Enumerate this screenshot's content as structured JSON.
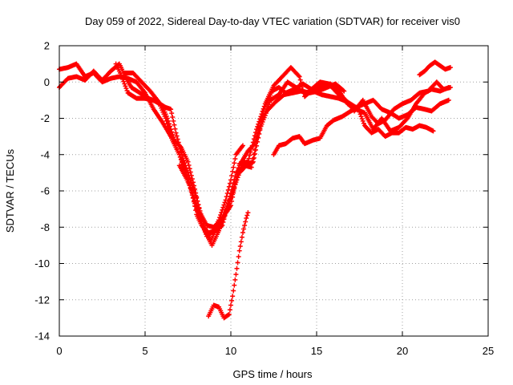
{
  "chart_data": {
    "type": "scatter",
    "title": "Day 059 of 2022, Sidereal Day-to-day VTEC variation (SDTVAR) for receiver vis0",
    "xlabel": "GPS time / hours",
    "ylabel": "SDTVAR / TECUs",
    "xlim": [
      0,
      25
    ],
    "ylim": [
      -14,
      2
    ],
    "x_ticks": [
      "0",
      "5",
      "10",
      "15",
      "20",
      "25"
    ],
    "y_ticks": [
      "2",
      "0",
      "-2",
      "-4",
      "-6",
      "-8",
      "-10",
      "-12",
      "-14"
    ],
    "grid": true,
    "legend": "none",
    "marker": "plus",
    "color": "#ff0000",
    "series": [
      {
        "points": [
          [
            0.0,
            0.7
          ],
          [
            0.5,
            0.8
          ],
          [
            1.0,
            1.0
          ],
          [
            1.5,
            0.3
          ],
          [
            2.0,
            0.5
          ],
          [
            2.5,
            0.0
          ],
          [
            3.0,
            0.2
          ],
          [
            3.5,
            0.3
          ],
          [
            4.0,
            0.2
          ],
          [
            4.5,
            0.0
          ],
          [
            5.0,
            -0.6
          ],
          [
            5.5,
            -1.5
          ],
          [
            6.0,
            -2.2
          ],
          [
            6.5,
            -3.0
          ],
          [
            7.0,
            -4.0
          ],
          [
            7.5,
            -5.4
          ],
          [
            8.0,
            -6.8
          ],
          [
            8.3,
            -7.8
          ],
          [
            8.6,
            -8.5
          ],
          [
            9.0,
            -8.2
          ],
          [
            9.3,
            -7.6
          ],
          [
            9.7,
            -6.5
          ],
          [
            10.0,
            -5.4
          ],
          [
            10.3,
            -4.0
          ],
          [
            10.7,
            -3.5
          ]
        ]
      },
      {
        "points": [
          [
            0.0,
            -0.3
          ],
          [
            0.5,
            0.2
          ],
          [
            1.0,
            0.3
          ],
          [
            1.5,
            0.1
          ],
          [
            2.0,
            0.6
          ],
          [
            2.5,
            0.1
          ],
          [
            3.0,
            0.6
          ],
          [
            3.5,
            1.0
          ],
          [
            3.8,
            0.4
          ],
          [
            4.2,
            -0.3
          ],
          [
            4.7,
            -0.6
          ],
          [
            5.2,
            -0.9
          ],
          [
            5.7,
            -1.1
          ],
          [
            6.2,
            -1.4
          ],
          [
            6.5,
            -1.5
          ],
          [
            6.8,
            -2.8
          ],
          [
            7.2,
            -4.2
          ],
          [
            7.5,
            -5.0
          ],
          [
            8.0,
            -6.4
          ],
          [
            8.4,
            -7.8
          ],
          [
            8.8,
            -8.8
          ],
          [
            9.2,
            -8.0
          ],
          [
            9.6,
            -7.4
          ],
          [
            10.0,
            -6.3
          ],
          [
            10.5,
            -5.0
          ],
          [
            11.0,
            -4.5
          ],
          [
            11.3,
            -4.4
          ],
          [
            11.8,
            -2.2
          ],
          [
            12.3,
            -1.0
          ],
          [
            12.8,
            -0.7
          ],
          [
            13.3,
            0.0
          ],
          [
            13.8,
            -0.3
          ],
          [
            14.3,
            -0.6
          ],
          [
            14.8,
            -0.5
          ],
          [
            15.3,
            -0.7
          ],
          [
            15.8,
            -0.8
          ],
          [
            16.3,
            -0.9
          ],
          [
            16.8,
            -1.1
          ],
          [
            17.3,
            -1.4
          ],
          [
            17.8,
            -1.2
          ],
          [
            18.3,
            -1.0
          ],
          [
            18.8,
            -1.5
          ],
          [
            19.3,
            -1.7
          ],
          [
            19.8,
            -2.0
          ],
          [
            20.3,
            -1.8
          ],
          [
            20.8,
            -1.4
          ],
          [
            21.3,
            -1.5
          ],
          [
            21.7,
            -1.6
          ],
          [
            22.2,
            -1.2
          ],
          [
            22.7,
            -1.0
          ]
        ]
      },
      {
        "points": [
          [
            3.8,
            0.5
          ],
          [
            4.3,
            0.5
          ],
          [
            4.7,
            0.1
          ],
          [
            5.3,
            -0.5
          ],
          [
            5.8,
            -1.1
          ],
          [
            6.2,
            -2.0
          ],
          [
            6.6,
            -3.2
          ],
          [
            7.0,
            -4.0
          ],
          [
            7.4,
            -5.0
          ],
          [
            7.8,
            -6.4
          ],
          [
            8.2,
            -7.6
          ],
          [
            8.6,
            -8.4
          ],
          [
            8.9,
            -9.0
          ],
          [
            9.3,
            -8.2
          ],
          [
            9.7,
            -7.2
          ],
          [
            10.1,
            -6.2
          ],
          [
            10.5,
            -4.6
          ],
          [
            11.0,
            -3.8
          ],
          [
            11.4,
            -3.4
          ],
          [
            11.9,
            -1.6
          ],
          [
            12.4,
            -0.5
          ],
          [
            12.8,
            -0.3
          ],
          [
            13.2,
            -0.6
          ],
          [
            13.7,
            -0.4
          ],
          [
            14.2,
            -0.1
          ],
          [
            14.7,
            -0.4
          ],
          [
            15.2,
            0.0
          ],
          [
            15.7,
            -0.1
          ],
          [
            16.2,
            -0.6
          ],
          [
            16.7,
            -1.0
          ],
          [
            17.2,
            -1.6
          ],
          [
            17.7,
            -1.0
          ],
          [
            18.2,
            -1.9
          ],
          [
            18.6,
            -2.3
          ],
          [
            19.0,
            -2.1
          ],
          [
            19.5,
            -1.5
          ],
          [
            20.0,
            -1.2
          ],
          [
            20.5,
            -1.0
          ],
          [
            21.0,
            -0.6
          ],
          [
            21.5,
            -0.5
          ],
          [
            22.0,
            0.0
          ],
          [
            22.4,
            -0.4
          ],
          [
            22.8,
            -0.3
          ]
        ]
      },
      {
        "points": [
          [
            3.3,
            1.0
          ],
          [
            3.6,
            0.4
          ],
          [
            4.0,
            -0.6
          ],
          [
            4.5,
            -0.9
          ],
          [
            5.0,
            -0.9
          ],
          [
            5.5,
            -1.0
          ],
          [
            6.0,
            -1.3
          ],
          [
            6.3,
            -2.0
          ],
          [
            6.7,
            -3.2
          ],
          [
            7.1,
            -3.6
          ],
          [
            7.5,
            -4.4
          ],
          [
            7.9,
            -5.9
          ],
          [
            8.2,
            -7.2
          ],
          [
            8.6,
            -7.9
          ],
          [
            9.0,
            -8.0
          ],
          [
            9.4,
            -7.6
          ],
          [
            9.8,
            -7.1
          ],
          [
            10.0,
            -6.8
          ],
          [
            10.5,
            -4.5
          ],
          [
            11.0,
            -4.4
          ],
          [
            11.5,
            -2.6
          ],
          [
            12.0,
            -1.2
          ],
          [
            12.5,
            -0.2
          ],
          [
            13.0,
            0.3
          ],
          [
            13.5,
            0.8
          ],
          [
            14.0,
            0.3
          ],
          [
            14.3,
            -0.8
          ],
          [
            14.8,
            -0.4
          ],
          [
            15.3,
            -0.2
          ],
          [
            15.8,
            -0.1
          ],
          [
            16.3,
            -0.5
          ],
          [
            16.8,
            -1.2
          ],
          [
            17.3,
            -1.5
          ],
          [
            17.8,
            -1.7
          ],
          [
            18.3,
            -2.6
          ],
          [
            18.8,
            -2.0
          ],
          [
            19.3,
            -2.7
          ],
          [
            19.8,
            -2.5
          ],
          [
            20.3,
            -2.0
          ],
          [
            20.8,
            -1.2
          ],
          [
            21.3,
            -0.6
          ],
          [
            21.7,
            -0.4
          ],
          [
            22.2,
            -0.5
          ],
          [
            22.7,
            -0.3
          ]
        ]
      },
      {
        "points": [
          [
            12.5,
            -4.0
          ],
          [
            12.8,
            -3.5
          ],
          [
            13.2,
            -3.4
          ],
          [
            13.6,
            -3.1
          ],
          [
            14.0,
            -3.0
          ],
          [
            14.3,
            -3.4
          ],
          [
            14.8,
            -3.2
          ],
          [
            15.2,
            -3.1
          ],
          [
            15.6,
            -2.4
          ],
          [
            16.0,
            -2.1
          ],
          [
            16.5,
            -1.9
          ],
          [
            17.0,
            -1.6
          ],
          [
            17.4,
            -1.4
          ],
          [
            17.8,
            -2.4
          ],
          [
            18.2,
            -2.8
          ],
          [
            18.6,
            -2.6
          ],
          [
            19.0,
            -3.0
          ],
          [
            19.4,
            -2.8
          ],
          [
            19.8,
            -2.8
          ],
          [
            20.2,
            -2.5
          ],
          [
            20.6,
            -2.6
          ],
          [
            21.0,
            -2.4
          ],
          [
            21.4,
            -2.5
          ],
          [
            21.8,
            -2.7
          ]
        ]
      },
      {
        "points": [
          [
            8.7,
            -12.9
          ],
          [
            9.0,
            -12.3
          ],
          [
            9.3,
            -12.4
          ],
          [
            9.6,
            -13.0
          ],
          [
            9.9,
            -12.8
          ],
          [
            10.1,
            -11.8
          ],
          [
            10.3,
            -10.6
          ],
          [
            10.5,
            -9.3
          ],
          [
            10.7,
            -8.3
          ],
          [
            10.9,
            -7.5
          ],
          [
            11.0,
            -7.2
          ]
        ]
      },
      {
        "points": [
          [
            7.0,
            -4.6
          ],
          [
            7.4,
            -5.3
          ],
          [
            7.7,
            -5.9
          ],
          [
            8.0,
            -7.3
          ],
          [
            8.3,
            -7.9
          ],
          [
            8.7,
            -8.3
          ],
          [
            9.1,
            -8.2
          ],
          [
            9.5,
            -7.9
          ],
          [
            9.9,
            -6.5
          ],
          [
            10.3,
            -5.0
          ],
          [
            10.8,
            -4.6
          ],
          [
            11.2,
            -4.7
          ],
          [
            11.6,
            -2.8
          ],
          [
            12.1,
            -1.6
          ],
          [
            12.6,
            -1.1
          ],
          [
            13.1,
            -0.7
          ],
          [
            13.6,
            -0.6
          ],
          [
            14.1,
            -0.5
          ],
          [
            14.6,
            -0.6
          ],
          [
            15.1,
            -0.5
          ],
          [
            15.6,
            -0.3
          ],
          [
            16.1,
            -0.1
          ],
          [
            16.6,
            -0.5
          ]
        ]
      },
      {
        "points": [
          [
            21.0,
            0.4
          ],
          [
            21.3,
            0.6
          ],
          [
            21.6,
            0.9
          ],
          [
            21.9,
            1.1
          ],
          [
            22.2,
            0.9
          ],
          [
            22.5,
            0.7
          ],
          [
            22.8,
            0.8
          ]
        ]
      }
    ]
  }
}
